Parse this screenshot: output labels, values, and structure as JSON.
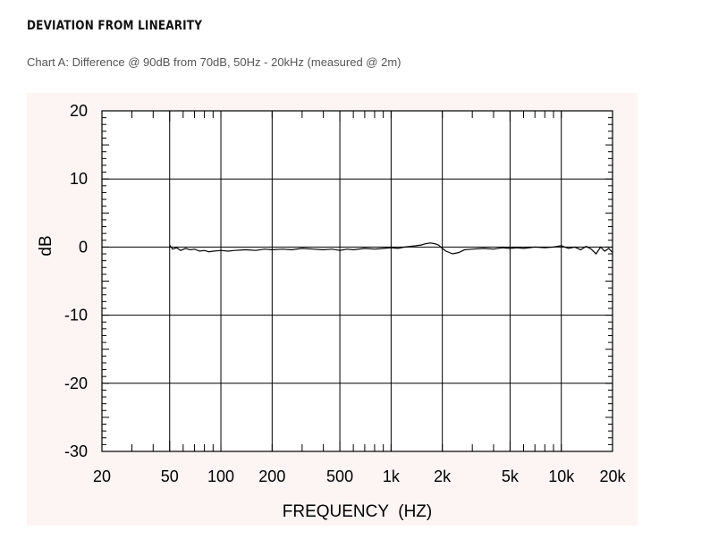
{
  "page": {
    "heading": "DEVIATION FROM LINEARITY",
    "caption": "Chart A: Difference @ 90dB from 70dB, 50Hz - 20kHz (measured @ 2m)"
  },
  "chart_data": {
    "type": "line",
    "title": "",
    "xlabel": "FREQUENCY  (HZ)",
    "ylabel": "dB",
    "x_scale": "log",
    "xlim": [
      20,
      20000
    ],
    "ylim": [
      -30,
      20
    ],
    "x_ticks": [
      20,
      50,
      100,
      200,
      500,
      1000,
      2000,
      5000,
      10000,
      20000
    ],
    "x_tick_labels": [
      "20",
      "50",
      "100",
      "200",
      "500",
      "1k",
      "2k",
      "5k",
      "10k",
      "20k"
    ],
    "y_ticks": [
      20,
      10,
      0,
      -10,
      -20,
      -30
    ],
    "y_tick_labels": [
      "20",
      "10",
      "0",
      "-10",
      "-20",
      "-30"
    ],
    "grid": true,
    "legend": "none",
    "colors": {
      "background": "#fdf4f4",
      "line": "#000000"
    },
    "series": [
      {
        "x": [
          50,
          52,
          55,
          58,
          62,
          66,
          70,
          75,
          80,
          85,
          90,
          100,
          110,
          120,
          140,
          160,
          180,
          200,
          230,
          260,
          300,
          350,
          400,
          450,
          500,
          550,
          600,
          700,
          800,
          900,
          1000,
          1100,
          1200,
          1300,
          1400,
          1500,
          1600,
          1700,
          1800,
          1900,
          2000,
          2100,
          2200,
          2300,
          2500,
          2700,
          3000,
          3500,
          4000,
          4500,
          5000,
          5500,
          6000,
          7000,
          8000,
          9000,
          10000,
          11000,
          12000,
          13000,
          14000,
          15000,
          16000,
          17000,
          18000,
          19000,
          20000
        ],
        "y": [
          0.3,
          -0.3,
          -0.1,
          -0.5,
          -0.2,
          -0.4,
          -0.3,
          -0.6,
          -0.5,
          -0.7,
          -0.6,
          -0.5,
          -0.6,
          -0.5,
          -0.4,
          -0.5,
          -0.3,
          -0.4,
          -0.3,
          -0.4,
          -0.2,
          -0.3,
          -0.4,
          -0.3,
          -0.5,
          -0.3,
          -0.4,
          -0.2,
          -0.3,
          -0.2,
          -0.1,
          -0.2,
          0.0,
          0.1,
          0.2,
          0.3,
          0.5,
          0.6,
          0.5,
          0.3,
          -0.2,
          -0.6,
          -0.8,
          -1.0,
          -0.8,
          -0.4,
          -0.3,
          -0.2,
          -0.3,
          -0.1,
          -0.2,
          -0.1,
          -0.2,
          0.0,
          -0.1,
          0.0,
          0.2,
          -0.2,
          0.0,
          -0.4,
          0.1,
          -0.3,
          -1.0,
          0.0,
          -0.6,
          -0.2,
          -0.8
        ]
      }
    ]
  }
}
